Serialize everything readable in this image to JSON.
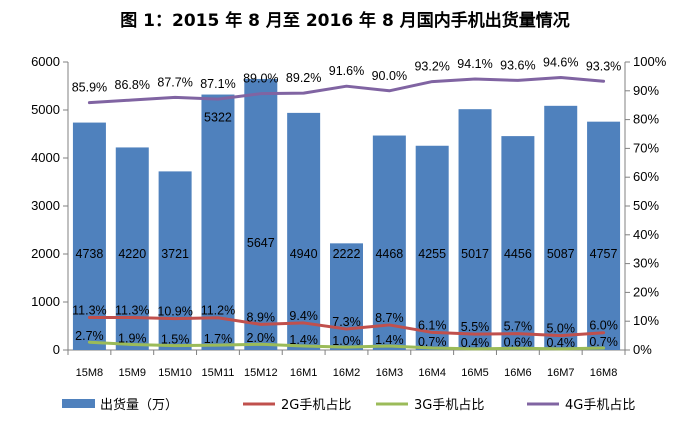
{
  "chart_data": {
    "type": "bar",
    "title": "图 1：2015 年 8 月至 2016 年 8 月国内手机出货量情况",
    "categories": [
      "15M8",
      "15M9",
      "15M10",
      "15M11",
      "15M12",
      "16M1",
      "16M2",
      "16M3",
      "16M4",
      "16M5",
      "16M6",
      "16M7",
      "16M8"
    ],
    "ylim": [
      0,
      6000
    ],
    "yticks": [
      0,
      1000,
      2000,
      3000,
      4000,
      5000,
      6000
    ],
    "y2lim": [
      0,
      100
    ],
    "y2ticks": [
      "0%",
      "10%",
      "20%",
      "30%",
      "40%",
      "50%",
      "60%",
      "70%",
      "80%",
      "90%",
      "100%"
    ],
    "legend_position": "bottom",
    "grid": false,
    "series": [
      {
        "name": "出货量（万）",
        "type": "bar",
        "axis": "left",
        "color": "#4f81bd",
        "values": [
          4738,
          4220,
          3721,
          5322,
          5647,
          4940,
          2222,
          4468,
          4255,
          5017,
          4456,
          5087,
          4757
        ],
        "labels": [
          "4738",
          "4220",
          "3721",
          "5322",
          "5647",
          "4940",
          "2222",
          "4468",
          "4255",
          "5017",
          "4456",
          "5087",
          "4757"
        ]
      },
      {
        "name": "2G手机占比",
        "type": "line",
        "axis": "right",
        "color": "#c0504d",
        "values": [
          11.3,
          11.3,
          10.9,
          11.2,
          8.9,
          9.4,
          7.3,
          8.7,
          6.1,
          5.5,
          5.7,
          5.0,
          6.0
        ],
        "labels": [
          "11.3%",
          "11.3%",
          "10.9%",
          "11.2%",
          "8.9%",
          "9.4%",
          "7.3%",
          "8.7%",
          "6.1%",
          "5.5%",
          "5.7%",
          "5.0%",
          "6.0%"
        ]
      },
      {
        "name": "3G手机占比",
        "type": "line",
        "axis": "right",
        "color": "#9bbb59",
        "values": [
          2.7,
          1.9,
          1.5,
          1.7,
          2.0,
          1.4,
          1.0,
          1.4,
          0.7,
          0.4,
          0.6,
          0.4,
          0.7
        ],
        "labels": [
          "2.7%",
          "1.9%",
          "1.5%",
          "1.7%",
          "2.0%",
          "1.4%",
          "1.0%",
          "1.4%",
          "0.7%",
          "0.4%",
          "0.6%",
          "0.4%",
          "0.7%"
        ]
      },
      {
        "name": "4G手机占比",
        "type": "line",
        "axis": "right",
        "color": "#8064a2",
        "values": [
          85.9,
          86.8,
          87.7,
          87.1,
          89.0,
          89.2,
          91.6,
          90.0,
          93.2,
          94.1,
          93.6,
          94.6,
          93.3
        ],
        "labels": [
          "85.9%",
          "86.8%",
          "87.7%",
          "87.1%",
          "89.0%",
          "89.2%",
          "91.6%",
          "90.0%",
          "93.2%",
          "94.1%",
          "93.6%",
          "94.6%",
          "93.3%"
        ]
      }
    ]
  }
}
